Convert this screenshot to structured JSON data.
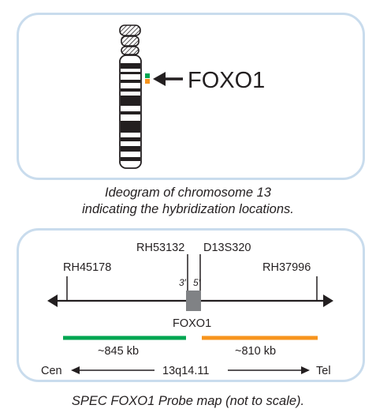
{
  "figure": {
    "ideogram": {
      "gene_label": "FOXO1",
      "caption_line1": "Ideogram of chromosome 13",
      "caption_line2": "indicating the hybridization locations."
    },
    "probe_map": {
      "markers": {
        "rh45178": "RH45178",
        "rh53132": "RH53132",
        "d13s320": "D13S320",
        "rh37996": "RH37996"
      },
      "prime3": "3′",
      "prime5": "5′",
      "gene_label": "FOXO1",
      "green_probe_size": "~845 kb",
      "orange_probe_size": "~810 kb",
      "cen_label": "Cen",
      "locus_label": "13q14.11",
      "tel_label": "Tel",
      "caption": "SPEC FOXO1 Probe map (not to scale)."
    },
    "colors": {
      "green_probe": "#00a651",
      "orange_probe": "#f7941d",
      "panel_border": "#c9dced",
      "gene_box": "#808285"
    }
  }
}
